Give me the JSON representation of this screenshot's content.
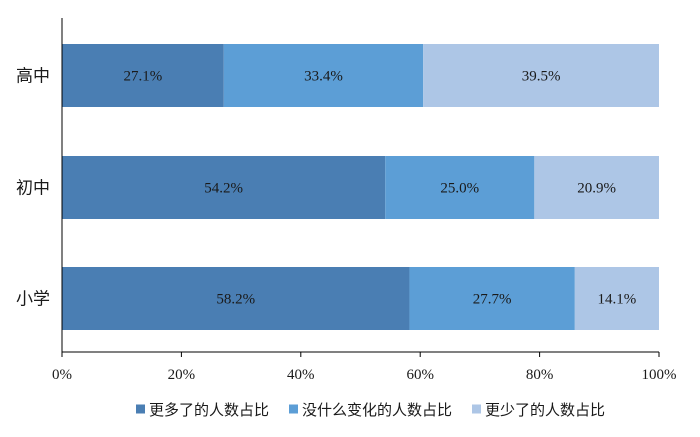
{
  "chart_data": {
    "type": "bar",
    "orientation": "horizontal",
    "stacked": "percent",
    "categories": [
      "高中",
      "初中",
      "小学"
    ],
    "series": [
      {
        "name": "更多了的人数占比",
        "values": [
          27.1,
          54.2,
          58.2
        ],
        "labels": [
          "27.1%",
          "54.2%",
          "58.2%"
        ],
        "color": "#4a7eb3"
      },
      {
        "name": "没什么变化的人数占比",
        "values": [
          33.4,
          25.0,
          27.7
        ],
        "labels": [
          "33.4%",
          "25.0%",
          "27.7%"
        ],
        "color": "#5c9ed6"
      },
      {
        "name": "更少了的人数占比",
        "values": [
          39.5,
          20.9,
          14.1
        ],
        "labels": [
          "39.5%",
          "20.9%",
          "14.1%"
        ],
        "color": "#adc6e6"
      }
    ],
    "xlim": [
      0,
      100
    ],
    "x_ticks": [
      "0%",
      "20%",
      "40%",
      "60%",
      "80%",
      "100%"
    ],
    "grid": false,
    "legend_position": "bottom"
  }
}
